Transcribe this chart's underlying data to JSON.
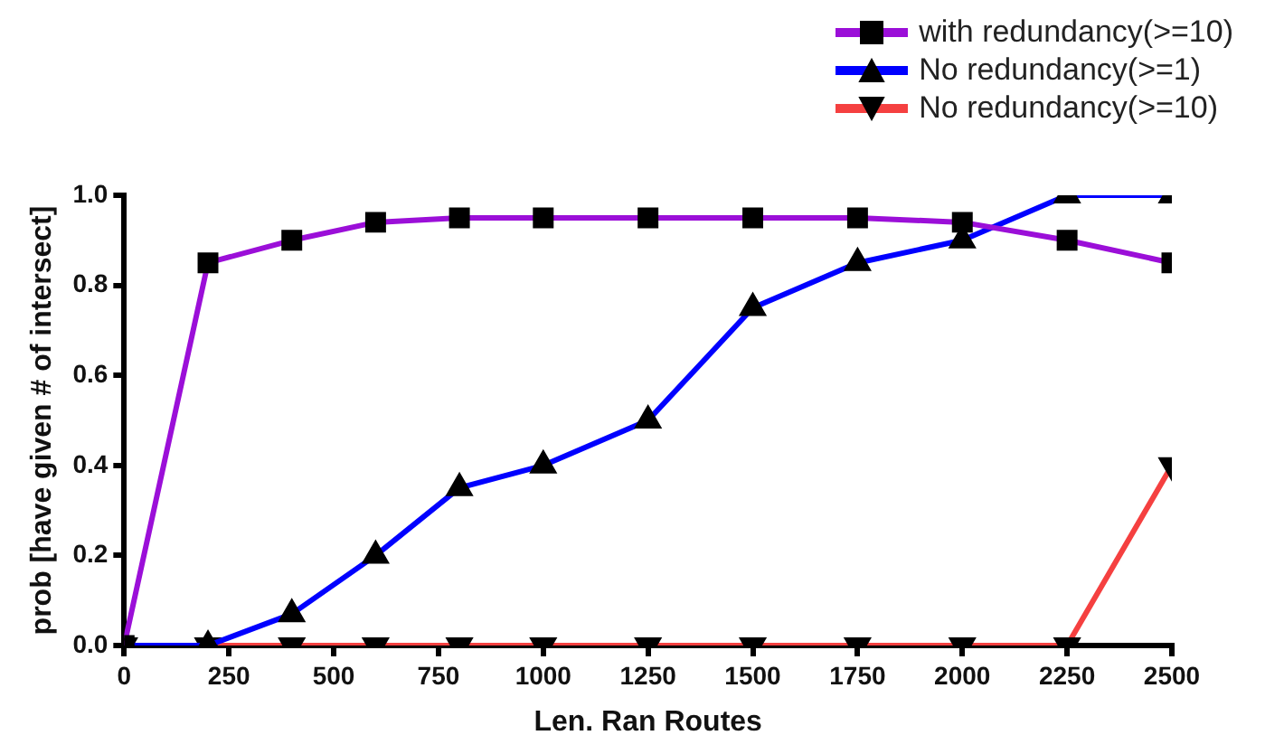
{
  "chart_data": {
    "type": "line",
    "xlabel": "Len. Ran Routes",
    "ylabel": "prob [have given # of intersect]",
    "x": [
      0,
      200,
      400,
      600,
      800,
      1000,
      1250,
      1500,
      1750,
      2000,
      2250,
      2500
    ],
    "xlim": [
      0,
      2500
    ],
    "xticks": [
      0,
      250,
      500,
      750,
      1000,
      1250,
      1500,
      1750,
      2000,
      2250,
      2500
    ],
    "ylim": [
      0,
      1
    ],
    "yticks": [
      {
        "value": 0,
        "label": "0.0"
      },
      {
        "value": 0.2,
        "label": "0.2"
      },
      {
        "value": 0.4,
        "label": "0.4"
      },
      {
        "value": 0.6,
        "label": "0.6"
      },
      {
        "value": 0.8,
        "label": "0.8"
      },
      {
        "value": 1,
        "label": "1.0"
      }
    ],
    "grid": false,
    "legend": "top right",
    "line_style": "solid",
    "series": [
      {
        "name": "with redundancy(>=10)",
        "color": "#9b0fd8",
        "marker": "square",
        "values": [
          0,
          0.85,
          0.9,
          0.94,
          0.95,
          0.95,
          0.95,
          0.95,
          0.95,
          0.94,
          0.9,
          0.85
        ]
      },
      {
        "name": "No redundancy(>=1)",
        "color": "#0000ff",
        "marker": "triangle",
        "values": [
          0,
          0,
          0.07,
          0.2,
          0.35,
          0.4,
          0.5,
          0.75,
          0.85,
          0.9,
          1,
          1
        ]
      },
      {
        "name": "No redundancy(>=10)",
        "color": "#f54040",
        "marker": "triangle-down",
        "values": [
          0,
          0,
          0,
          0,
          0,
          0,
          0,
          0,
          0,
          0,
          0,
          0.4
        ]
      }
    ]
  }
}
